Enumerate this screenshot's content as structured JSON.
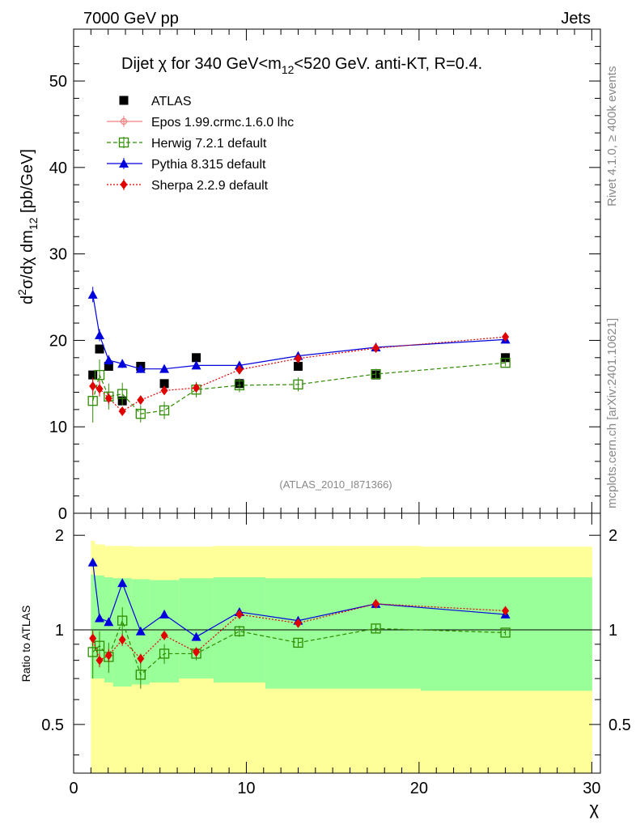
{
  "header": {
    "left": "7000 GeV pp",
    "right": "Jets"
  },
  "side_labels": {
    "rivet": "Rivet 4.1.0, ≥ 400k events",
    "mcplots": "mcplots.cern.ch [arXiv:2401.10621]"
  },
  "watermark": "(ATLAS_2010_I871366)",
  "chart_data": {
    "type": "scatter",
    "title": "Dijet χ for 340 GeV<m12<520 GeV.  anti-KT, R=0.4.",
    "title_parts": {
      "a": "Dijet χ for 340 GeV<m",
      "sub": "12",
      "b": "<520 GeV.  anti-KT, R=0.4."
    },
    "ylabel_parts": {
      "a": "d",
      "sup": "2",
      "b": "σ/dχ dm",
      "sub": "12",
      "c": " [pb/GeV]"
    },
    "ratio_ylabel": "Ratio to ATLAS",
    "xlabel": "χ",
    "xlim": [
      0,
      30.5
    ],
    "ylim": [
      0,
      56
    ],
    "ratio_ylim": [
      0.35,
      2.35
    ],
    "x_ticks": [
      0,
      10,
      20,
      30
    ],
    "x_tick_labels": [
      "0",
      "10",
      "20",
      "30"
    ],
    "y_ticks": [
      0,
      10,
      20,
      30,
      40,
      50
    ],
    "y_tick_labels": [
      "0",
      "10",
      "20",
      "30",
      "40",
      "50"
    ],
    "ratio_ticks": [
      0.5,
      1,
      2
    ],
    "ratio_tick_labels": [
      "0.5",
      "1",
      "2"
    ],
    "x": [
      1.11,
      1.5,
      2.03,
      2.82,
      3.88,
      5.25,
      7.1,
      9.6,
      13.0,
      17.5,
      25.0
    ],
    "bins": [
      [
        1.0,
        1.22
      ],
      [
        1.22,
        1.78
      ],
      [
        1.78,
        2.28
      ],
      [
        2.28,
        3.36
      ],
      [
        3.36,
        4.4
      ],
      [
        4.4,
        6.1
      ],
      [
        6.1,
        8.1
      ],
      [
        8.1,
        11.1
      ],
      [
        11.1,
        14.9
      ],
      [
        14.9,
        20.1
      ],
      [
        20.1,
        30.0
      ]
    ],
    "band_green": [
      [
        0.7,
        1.5
      ],
      [
        0.7,
        1.49
      ],
      [
        0.68,
        1.47
      ],
      [
        0.66,
        1.46
      ],
      [
        0.67,
        1.45
      ],
      [
        0.68,
        1.44
      ],
      [
        0.7,
        1.46
      ],
      [
        0.68,
        1.47
      ],
      [
        0.65,
        1.46
      ],
      [
        0.65,
        1.46
      ],
      [
        0.64,
        1.47
      ]
    ],
    "band_yellow": [
      [
        0.35,
        1.92
      ],
      [
        0.35,
        1.87
      ],
      [
        0.35,
        1.85
      ],
      [
        0.35,
        1.85
      ],
      [
        0.35,
        1.84
      ],
      [
        0.35,
        1.84
      ],
      [
        0.35,
        1.84
      ],
      [
        0.35,
        1.85
      ],
      [
        0.35,
        1.85
      ],
      [
        0.35,
        1.85
      ],
      [
        0.35,
        1.84
      ]
    ],
    "series": [
      {
        "name": "ATLAS",
        "color": "#000000",
        "marker": "square",
        "line": "none",
        "values": [
          16.0,
          19.0,
          17.0,
          13.0,
          17.0,
          15.0,
          18.0,
          15.0,
          17.0,
          16.0,
          18.0
        ],
        "errors": [
          0.3,
          0.3,
          0.3,
          0.3,
          0.3,
          0.3,
          0.3,
          0.3,
          0.3,
          0.3,
          0.3
        ],
        "ratio": [
          1,
          1,
          1,
          1,
          1,
          1,
          1,
          1,
          1,
          1,
          1
        ],
        "ratio_err": [
          0,
          0,
          0,
          0,
          0,
          0,
          0,
          0,
          0,
          0,
          0
        ]
      },
      {
        "name": "Epos 1.99.crmc.1.6.0 lhc",
        "color": "#f08080",
        "marker": "cross-circle",
        "line": "solid",
        "values": [],
        "errors": [],
        "ratio": [],
        "ratio_err": []
      },
      {
        "name": "Herwig 7.2.1 default",
        "color": "#2e8b00",
        "marker": "open-square",
        "line": "dashed",
        "values": [
          13.0,
          16.0,
          13.5,
          13.8,
          11.5,
          11.9,
          14.3,
          14.8,
          14.9,
          16.1,
          17.4
        ],
        "errors": [
          2.5,
          1.8,
          1.5,
          1.3,
          1.0,
          1.0,
          0.9,
          0.8,
          0.8,
          0.6,
          0.4
        ],
        "ratio": [
          0.85,
          0.89,
          0.82,
          1.07,
          0.72,
          0.84,
          0.84,
          0.99,
          0.91,
          1.01,
          0.98
        ],
        "ratio_err": [
          0.15,
          0.1,
          0.09,
          0.11,
          0.07,
          0.06,
          0.04,
          0.04,
          0.03,
          0.03,
          0.02
        ]
      },
      {
        "name": "Pythia 8.315 default",
        "color": "#0000dd",
        "marker": "triangle",
        "line": "solid",
        "values": [
          25.3,
          20.6,
          17.7,
          17.3,
          16.7,
          16.7,
          17.1,
          17.1,
          18.2,
          19.2,
          20.1
        ],
        "errors": [
          0.9,
          0.7,
          0.6,
          0.5,
          0.4,
          0.3,
          0.3,
          0.3,
          0.3,
          0.3,
          0.2
        ],
        "ratio": [
          1.64,
          1.09,
          1.06,
          1.41,
          0.99,
          1.12,
          0.95,
          1.14,
          1.07,
          1.21,
          1.12
        ],
        "ratio_err": [
          0.05,
          0.03,
          0.03,
          0.03,
          0.02,
          0.02,
          0.02,
          0.02,
          0.02,
          0.02,
          0.01
        ]
      },
      {
        "name": "Sherpa 2.2.9 default",
        "color": "#e00000",
        "marker": "diamond",
        "line": "dotted",
        "values": [
          14.7,
          14.4,
          13.3,
          11.8,
          13.1,
          14.2,
          14.5,
          16.6,
          17.9,
          19.1,
          20.4
        ],
        "errors": [
          1.0,
          0.9,
          0.7,
          0.5,
          0.5,
          0.4,
          0.4,
          0.4,
          0.4,
          0.3,
          0.3
        ],
        "ratio": [
          0.94,
          0.8,
          0.83,
          0.93,
          0.81,
          0.96,
          0.85,
          1.12,
          1.05,
          1.21,
          1.15
        ],
        "ratio_err": [
          0.05,
          0.04,
          0.04,
          0.04,
          0.03,
          0.03,
          0.03,
          0.03,
          0.02,
          0.02,
          0.02
        ]
      }
    ]
  }
}
